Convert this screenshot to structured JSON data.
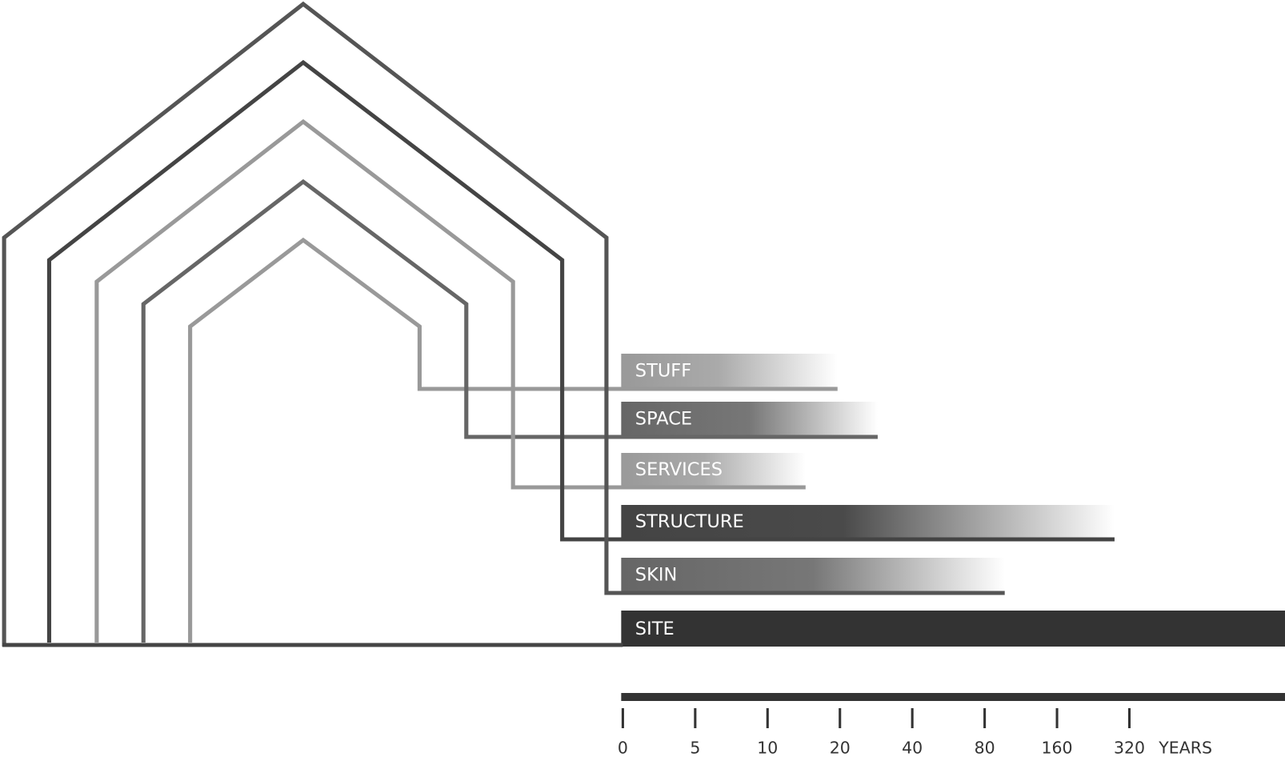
{
  "layers": [
    {
      "label": "STUFF"
    },
    {
      "label": "SPACE"
    },
    {
      "label": "SERVICES"
    },
    {
      "label": "STRUCTURE"
    },
    {
      "label": "SKIN"
    },
    {
      "label": "SITE"
    }
  ],
  "scale": {
    "ticks": [
      "0",
      "5",
      "10",
      "20",
      "40",
      "80",
      "160",
      "320"
    ],
    "unit": "YEARS"
  }
}
